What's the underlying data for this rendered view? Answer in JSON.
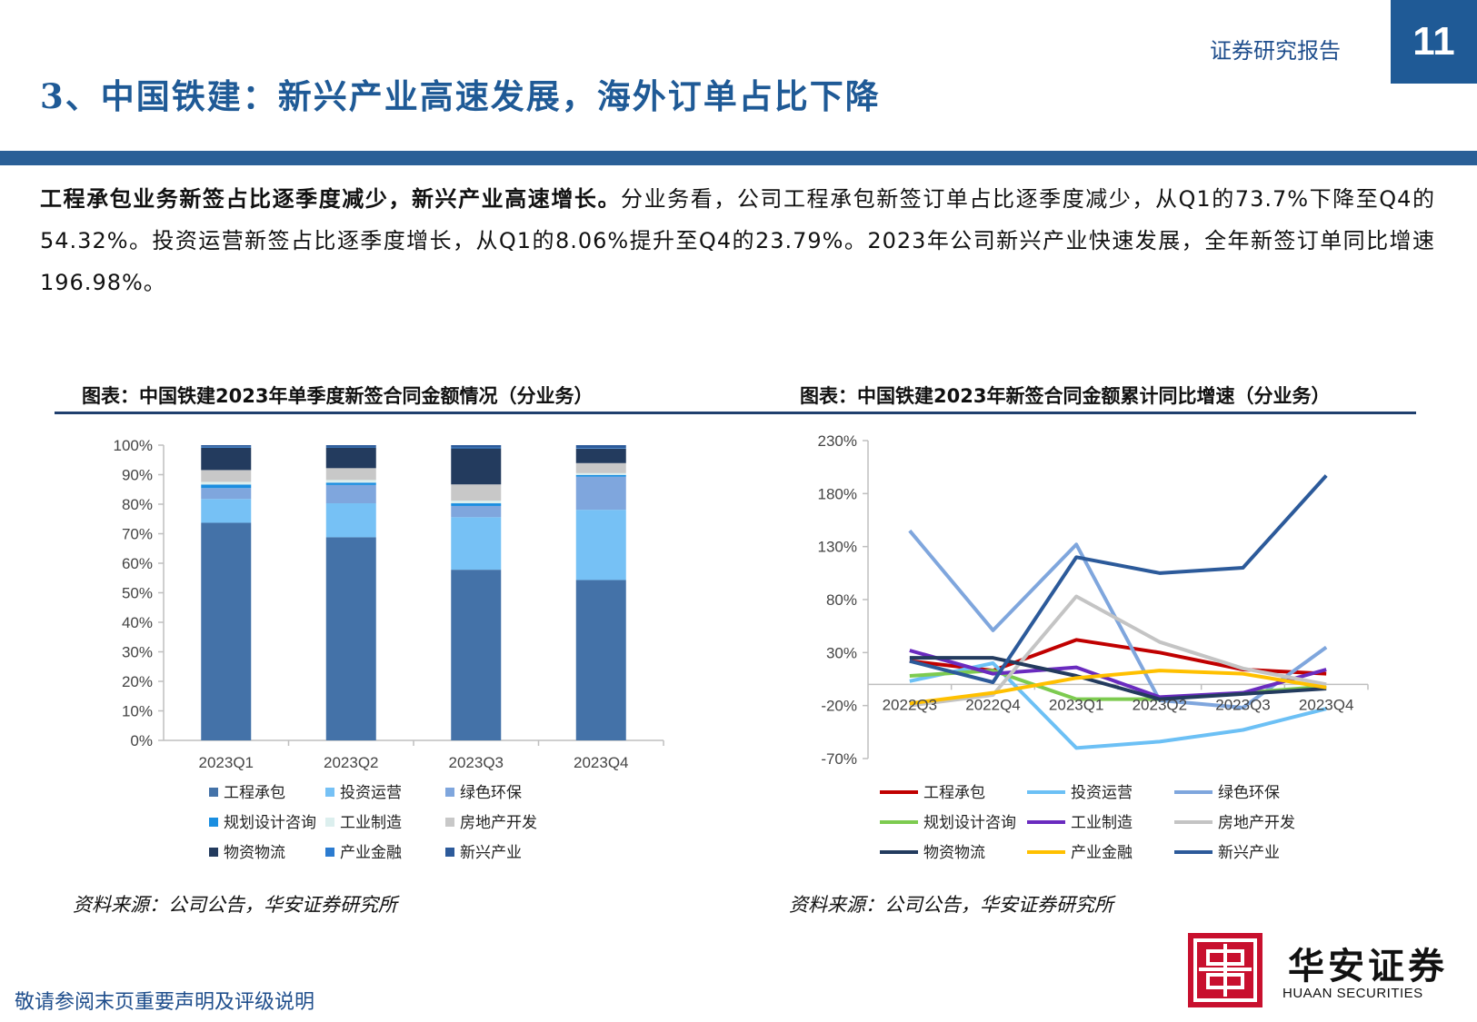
{
  "header": {
    "report_label": "证券研究报告",
    "page_number": "11",
    "section_title": "3、中国铁建：新兴产业高速发展，海外订单占比下降"
  },
  "body": {
    "lead_bold": "工程承包业务新签占比逐季度减少，新兴产业高速增长。",
    "text": "分业务看，公司工程承包新签订单占比逐季度减少，从Q1的73.7%下降至Q4的54.32%。投资运营新签占比逐季度增长，从Q1的8.06%提升至Q4的23.79%。2023年公司新兴产业快速发展，全年新签订单同比增速196.98%。"
  },
  "figures": {
    "left_title": "图表：中国铁建2023年单季度新签合同金额情况（分业务）",
    "right_title": "图表：中国铁建2023年新签合同金额累计同比增速（分业务）",
    "left_source": "资料来源：公司公告，华安证券研究所",
    "right_source": "资料来源：公司公告，华安证券研究所"
  },
  "chart_data": [
    {
      "type": "bar",
      "stacked": true,
      "categories": [
        "2023Q1",
        "2023Q2",
        "2023Q3",
        "2023Q4"
      ],
      "ylim": [
        0,
        100
      ],
      "yticks": [
        "0%",
        "10%",
        "20%",
        "30%",
        "40%",
        "50%",
        "60%",
        "70%",
        "80%",
        "90%",
        "100%"
      ],
      "legend_position": "bottom",
      "series": [
        {
          "name": "工程承包",
          "color": "#4472a8",
          "values": [
            73.7,
            68.8,
            57.8,
            54.32
          ]
        },
        {
          "name": "投资运营",
          "color": "#76c1f5",
          "values": [
            8.06,
            11.5,
            17.8,
            23.79
          ]
        },
        {
          "name": "绿色环保",
          "color": "#7fa6dd",
          "values": [
            3.7,
            6.2,
            3.8,
            11.2
          ]
        },
        {
          "name": "规划设计咨询",
          "color": "#1a8ee0",
          "values": [
            1.2,
            0.8,
            0.9,
            0.6
          ]
        },
        {
          "name": "工业制造",
          "color": "#dcefee",
          "values": [
            0.9,
            0.9,
            0.9,
            0.6
          ]
        },
        {
          "name": "房地产开发",
          "color": "#c8c8c8",
          "values": [
            4.0,
            4.0,
            5.5,
            3.4
          ]
        },
        {
          "name": "物资物流",
          "color": "#233b5e",
          "values": [
            7.6,
            7.0,
            12.2,
            4.9
          ]
        },
        {
          "name": "产业金融",
          "color": "#2b7bd0",
          "values": [
            0.3,
            0.2,
            0.3,
            0.2
          ]
        },
        {
          "name": "新兴产业",
          "color": "#2c5a9a",
          "values": [
            0.54,
            0.6,
            0.8,
            0.99
          ]
        }
      ]
    },
    {
      "type": "line",
      "categories": [
        "2022Q3",
        "2022Q4",
        "2023Q1",
        "2023Q2",
        "2023Q3",
        "2023Q4"
      ],
      "ylim": [
        -70,
        230
      ],
      "yticks": [
        "-70%",
        "-20%",
        "30%",
        "80%",
        "130%",
        "180%",
        "230%"
      ],
      "legend_position": "bottom",
      "series": [
        {
          "name": "工程承包",
          "color": "#c00000",
          "values": [
            22,
            13,
            42,
            30,
            14,
            10
          ]
        },
        {
          "name": "投资运营",
          "color": "#6cc0f5",
          "values": [
            3,
            20,
            -60,
            -54,
            -43,
            -23
          ]
        },
        {
          "name": "绿色环保",
          "color": "#7fa6dd",
          "values": [
            145,
            51,
            132,
            -15,
            -22,
            35
          ]
        },
        {
          "name": "规划设计咨询",
          "color": "#7dcb50",
          "values": [
            8,
            13,
            -14,
            -14,
            -8,
            -2
          ]
        },
        {
          "name": "工业制造",
          "color": "#6a2bbf",
          "values": [
            32,
            10,
            16,
            -12,
            -8,
            14
          ]
        },
        {
          "name": "房地产开发",
          "color": "#c4c4c4",
          "values": [
            -20,
            -10,
            83,
            40,
            15,
            0
          ]
        },
        {
          "name": "物资物流",
          "color": "#233b5e",
          "values": [
            25,
            25,
            8,
            -14,
            -9,
            -4
          ]
        },
        {
          "name": "产业金融",
          "color": "#ffc000",
          "values": [
            -18,
            -8,
            6,
            13,
            10,
            -3
          ]
        },
        {
          "name": "新兴产业",
          "color": "#2c5a9a",
          "values": [
            22,
            2,
            120,
            105,
            110,
            197
          ]
        }
      ]
    }
  ],
  "footer": {
    "disclaimer": "敬请参阅末页重要声明及评级说明",
    "logo_cn": "华安证券",
    "logo_en": "HUAAN SECURITIES"
  }
}
